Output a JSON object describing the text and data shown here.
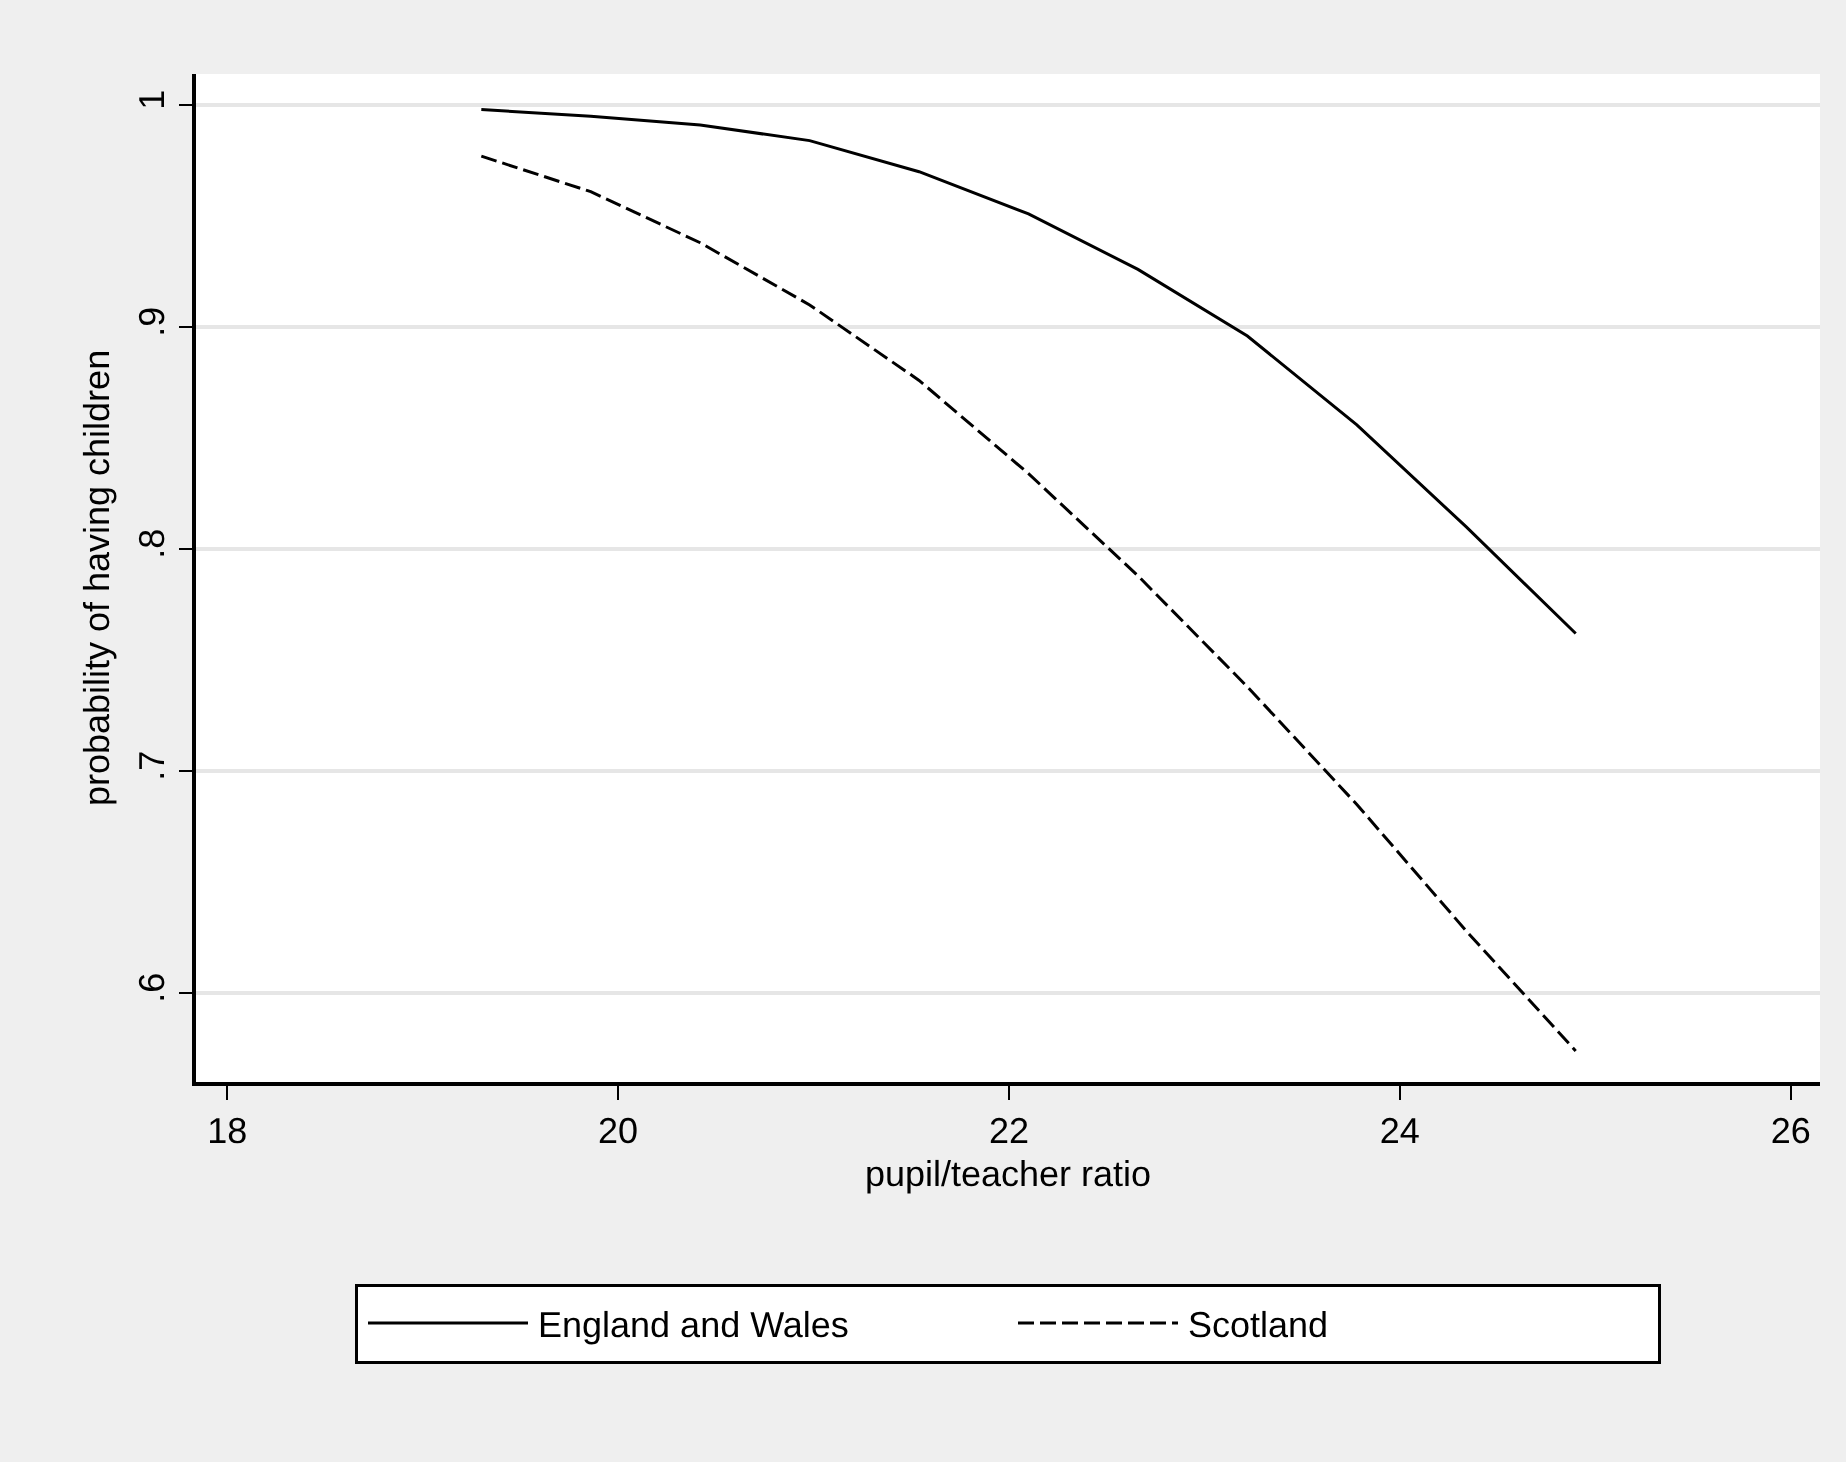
{
  "chart_data": {
    "type": "line",
    "xlabel": "pupil/teacher ratio",
    "ylabel": "probability of having children",
    "x": [
      19.3,
      19.86,
      20.42,
      20.98,
      21.54,
      22.1,
      22.66,
      23.22,
      23.78,
      24.34,
      24.9
    ],
    "series": [
      {
        "name": "England and Wales",
        "color": "#000000",
        "line_style": "solid",
        "values": [
          0.998,
          0.995,
          0.991,
          0.984,
          0.97,
          0.951,
          0.926,
          0.896,
          0.856,
          0.81,
          0.762
        ]
      },
      {
        "name": "Scotland",
        "color": "#000000",
        "line_style": "dashed",
        "values": [
          0.977,
          0.961,
          0.938,
          0.91,
          0.876,
          0.834,
          0.788,
          0.738,
          0.685,
          0.628,
          0.574
        ]
      }
    ],
    "xlim": [
      17.84,
      26.15
    ],
    "xticks": [
      18,
      20,
      22,
      24,
      26
    ],
    "ylim": [
      0.56,
      1.014
    ],
    "yticks": [
      {
        "value": 0.6,
        "label": ".6"
      },
      {
        "value": 0.7,
        "label": ".7"
      },
      {
        "value": 0.8,
        "label": ".8"
      },
      {
        "value": 0.9,
        "label": ".9"
      },
      1
    ],
    "grid": "y",
    "legend": "bottom",
    "marker": "none"
  }
}
